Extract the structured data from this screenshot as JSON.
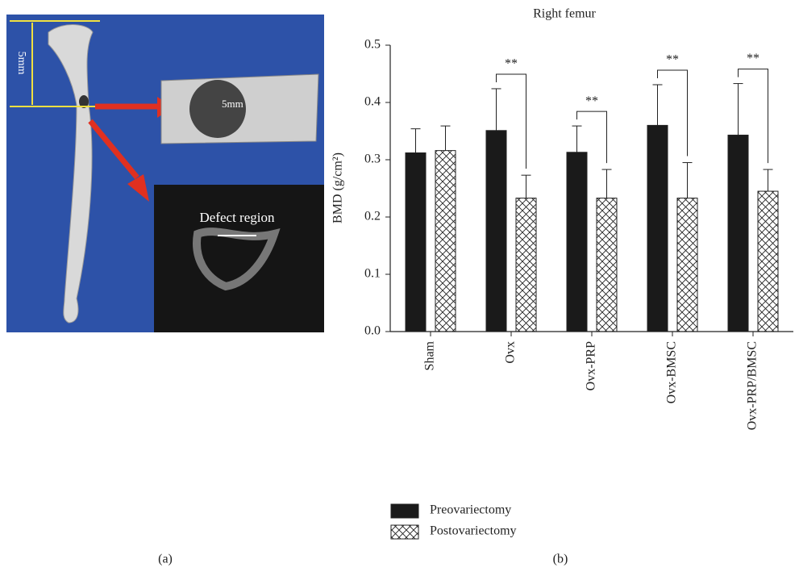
{
  "panel_a": {
    "labels": [
      "5mm",
      "5mm",
      "Defect region"
    ],
    "caption": "(a)"
  },
  "panel_b_caption": "(b)",
  "chart_data": {
    "type": "bar",
    "title": "Right femur",
    "y_label": "BMD (g/cm²)",
    "categories": [
      "Sham",
      "Ovx",
      "Ovx-PRP",
      "Ovx-BMSC",
      "Ovx-PRP/BMSC"
    ],
    "series": [
      {
        "name": "Preovariectomy",
        "color": "#1a1a1a",
        "values": [
          0.312,
          0.351,
          0.313,
          0.36,
          0.343
        ],
        "errors": [
          0.042,
          0.073,
          0.046,
          0.071,
          0.09
        ]
      },
      {
        "name": "Postovariectomy",
        "color": "#ffffff",
        "hatch": "cross",
        "values": [
          0.316,
          0.233,
          0.233,
          0.233,
          0.245
        ],
        "errors": [
          0.043,
          0.04,
          0.05,
          0.062,
          0.038
        ]
      }
    ],
    "significance": [
      null,
      "**",
      "**",
      "**",
      "**"
    ],
    "ylim": [
      0,
      0.5
    ],
    "yticks": [
      {
        "value": 0,
        "label": "0.0"
      },
      0.1,
      0.2,
      0.3,
      0.4,
      0.5
    ]
  }
}
